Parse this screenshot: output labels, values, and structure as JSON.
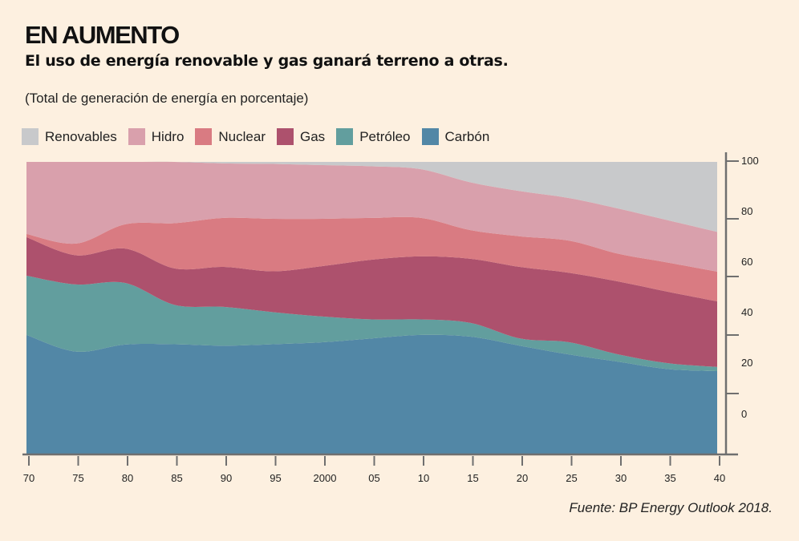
{
  "header": {
    "title": "EN AUMENTO",
    "subtitle": "El uso de energía renovable y gas ganará terreno a otras.",
    "unit_note": "(Total de generación de energía en porcentaje)"
  },
  "legend": [
    {
      "label": "Renovables",
      "color": "#C8C9CB"
    },
    {
      "label": "Hidro",
      "color": "#D9A0AC"
    },
    {
      "label": "Nuclear",
      "color": "#D97B82"
    },
    {
      "label": "Gas",
      "color": "#AD516D"
    },
    {
      "label": "Petróleo",
      "color": "#629E9E"
    },
    {
      "label": "Carbón",
      "color": "#5287A6"
    }
  ],
  "source": "Fuente: BP Energy Outlook 2018.",
  "chart_data": {
    "type": "area",
    "stacked": true,
    "title": "EN AUMENTO",
    "subtitle": "El uso de energía renovable y gas ganará terreno a otras.",
    "ylabel": "Total de generación de energía en porcentaje",
    "xlabel": "",
    "x": [
      1970,
      1975,
      1980,
      1985,
      1990,
      1995,
      2000,
      2005,
      2010,
      2015,
      2020,
      2025,
      2030,
      2035,
      2040
    ],
    "xlim": [
      1970,
      2040
    ],
    "ylim": [
      0,
      100
    ],
    "x_tick_labels": [
      "70",
      "75",
      "80",
      "85",
      "90",
      "95",
      "2000",
      "05",
      "10",
      "15",
      "20",
      "25",
      "30",
      "35",
      "40"
    ],
    "y_tick_labels": [
      "100",
      "80",
      "60",
      "40",
      "20",
      "0"
    ],
    "grid": false,
    "legend_position": "top-left",
    "series": [
      {
        "name": "Carbón",
        "color": "#5287A6",
        "values": [
          40.7,
          35.0,
          37.4,
          37.5,
          37.0,
          37.5,
          38.2,
          39.5,
          40.7,
          40.1,
          37.0,
          34.0,
          31.5,
          29.0,
          28.3
        ]
      },
      {
        "name": "Petróleo",
        "color": "#629E9E",
        "values": [
          20.3,
          23.0,
          21.1,
          13.5,
          13.3,
          11.0,
          8.8,
          6.5,
          5.3,
          4.7,
          2.5,
          4.2,
          2.5,
          2.0,
          1.4
        ]
      },
      {
        "name": "Gas",
        "color": "#AD516D",
        "values": [
          13.2,
          10.0,
          11.8,
          12.5,
          13.7,
          14.0,
          17.3,
          20.5,
          21.6,
          22.0,
          24.5,
          23.8,
          25.0,
          24.5,
          22.5
        ]
      },
      {
        "name": "Nuclear",
        "color": "#D97B82",
        "values": [
          1.1,
          4.0,
          8.3,
          15.5,
          16.8,
          18.0,
          16.2,
          14.3,
          13.2,
          9.8,
          10.5,
          11.0,
          9.5,
          10.0,
          10.2
        ]
      },
      {
        "name": "Hidro",
        "color": "#D9A0AC",
        "values": [
          24.7,
          28.0,
          21.4,
          21.0,
          18.7,
          18.8,
          18.4,
          17.7,
          16.7,
          16.4,
          15.5,
          14.6,
          15.5,
          14.5,
          13.6
        ]
      },
      {
        "name": "Renovables",
        "color": "#C8C9CB",
        "values": [
          0.0,
          0.0,
          0.0,
          0.0,
          0.5,
          0.7,
          1.1,
          1.5,
          2.5,
          7.0,
          10.0,
          12.4,
          16.0,
          20.0,
          24.0
        ]
      }
    ]
  }
}
